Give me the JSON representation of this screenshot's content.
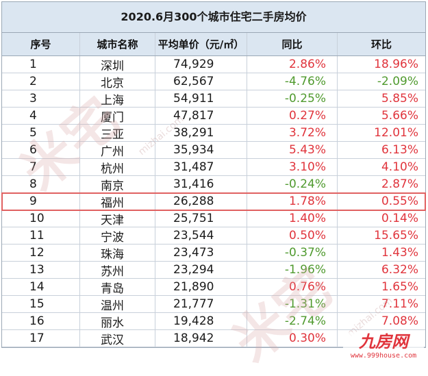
{
  "title": "2020.6月300个城市住宅二手房均价",
  "headers": {
    "index": "序号",
    "city": "城市名称",
    "price": "平均单价（元/㎡）",
    "yoy": "同比",
    "mom": "环比"
  },
  "rows": [
    {
      "index": "1",
      "city": "深圳",
      "price": "74,929",
      "yoy": "2.86%",
      "mom": "18.96%"
    },
    {
      "index": "2",
      "city": "北京",
      "price": "62,567",
      "yoy": "-4.76%",
      "mom": "-2.09%"
    },
    {
      "index": "3",
      "city": "上海",
      "price": "54,911",
      "yoy": "-0.25%",
      "mom": "5.85%"
    },
    {
      "index": "4",
      "city": "厦门",
      "price": "47,817",
      "yoy": "0.27%",
      "mom": "5.66%"
    },
    {
      "index": "5",
      "city": "三亚",
      "price": "38,291",
      "yoy": "3.72%",
      "mom": "12.01%"
    },
    {
      "index": "6",
      "city": "广州",
      "price": "35,934",
      "yoy": "5.43%",
      "mom": "6.13%"
    },
    {
      "index": "7",
      "city": "杭州",
      "price": "31,487",
      "yoy": "3.10%",
      "mom": "4.10%"
    },
    {
      "index": "8",
      "city": "南京",
      "price": "31,416",
      "yoy": "-0.24%",
      "mom": "2.87%"
    },
    {
      "index": "9",
      "city": "福州",
      "price": "26,288",
      "yoy": "1.78%",
      "mom": "0.55%"
    },
    {
      "index": "10",
      "city": "天津",
      "price": "25,751",
      "yoy": "1.40%",
      "mom": "0.14%"
    },
    {
      "index": "11",
      "city": "宁波",
      "price": "23,544",
      "yoy": "0.50%",
      "mom": "15.65%"
    },
    {
      "index": "12",
      "city": "珠海",
      "price": "23,473",
      "yoy": "-0.37%",
      "mom": "1.43%"
    },
    {
      "index": "13",
      "city": "苏州",
      "price": "23,294",
      "yoy": "-1.96%",
      "mom": "6.32%"
    },
    {
      "index": "14",
      "city": "青岛",
      "price": "21,890",
      "yoy": "0.76%",
      "mom": "1.65%"
    },
    {
      "index": "15",
      "city": "温州",
      "price": "21,777",
      "yoy": "-1.31%",
      "mom": "7.11%"
    },
    {
      "index": "16",
      "city": "丽水",
      "price": "19,428",
      "yoy": "-2.74%",
      "mom": "7.08%"
    },
    {
      "index": "17",
      "city": "武汉",
      "price": "18,942",
      "yoy": "0.30%",
      "mom": ""
    }
  ],
  "highlighted_row_index": "9",
  "watermark": {
    "text": "米宅",
    "url": "mizhai.com"
  },
  "logo": {
    "text": "九房网",
    "url": "www.999house.com"
  },
  "colors": {
    "positive": "#e0343c",
    "negative": "#4f9a2e",
    "header_bg": "#dbe6f1",
    "highlight_border": "#e06060"
  }
}
